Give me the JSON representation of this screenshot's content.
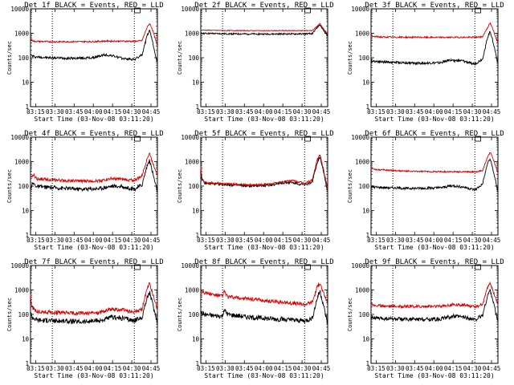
{
  "figure_type": "multi-panel time series, 3 x 3 grid",
  "colors": {
    "events": "#000000",
    "lld": "#dd0000",
    "marker": "#000000"
  },
  "chart_data": [
    {
      "type": "line",
      "title": "Det 1f BLACK = Events, RED = LLD",
      "xlabel": "Start Time (03-Nov-08 03:11:20)",
      "ylabel": "Counts/sec",
      "xlim": [
        "03:11",
        "04:50"
      ],
      "ylim": [
        1,
        10000
      ],
      "yscale": "log",
      "xticks": [
        "03:15",
        "03:30",
        "03:45",
        "04:00",
        "04:15",
        "04:30",
        "04:45"
      ],
      "yticks": [
        "1",
        "10",
        "100",
        "1000",
        "10000"
      ],
      "vlines": [
        "03:28",
        "04:32"
      ],
      "series": [
        {
          "name": "Events",
          "color": "#000000",
          "noise": 0.05,
          "x": [
            "03:11",
            "03:14",
            "03:25",
            "03:45",
            "04:00",
            "04:08",
            "04:14",
            "04:22",
            "04:32",
            "04:38",
            "04:42",
            "04:44",
            "04:46",
            "04:50"
          ],
          "y": [
            130,
            110,
            100,
            95,
            100,
            130,
            125,
            95,
            85,
            130,
            800,
            1300,
            500,
            60
          ]
        },
        {
          "name": "LLD",
          "color": "#dd0000",
          "noise": 0.03,
          "x": [
            "03:11",
            "03:14",
            "03:30",
            "04:00",
            "04:10",
            "04:32",
            "04:38",
            "04:42",
            "04:44",
            "04:46",
            "04:50"
          ],
          "y": [
            550,
            470,
            450,
            460,
            480,
            470,
            500,
            1800,
            2500,
            1500,
            300
          ]
        }
      ]
    },
    {
      "type": "line",
      "title": "Det 2f BLACK = Events, RED = LLD",
      "xlabel": "Start Time (03-Nov-08 03:11:20)",
      "ylabel": "Counts/sec",
      "xlim": [
        "03:11",
        "04:50"
      ],
      "ylim": [
        1,
        10000
      ],
      "yscale": "log",
      "xticks": [
        "03:15",
        "03:30",
        "03:45",
        "04:00",
        "04:15",
        "04:30",
        "04:45"
      ],
      "yticks": [
        "1",
        "10",
        "100",
        "1000",
        "10000"
      ],
      "vlines": [
        "03:28",
        "04:32"
      ],
      "series": [
        {
          "name": "Events",
          "color": "#000000",
          "noise": 0.03,
          "x": [
            "03:11",
            "03:30",
            "04:00",
            "04:30",
            "04:38",
            "04:42",
            "04:44",
            "04:46",
            "04:50"
          ],
          "y": [
            1000,
            950,
            930,
            940,
            960,
            1800,
            2200,
            1500,
            800
          ]
        },
        {
          "name": "LLD",
          "color": "#dd0000",
          "noise": 0.015,
          "x": [
            "03:11",
            "03:30",
            "04:00",
            "04:30",
            "04:38",
            "04:42",
            "04:44",
            "04:46",
            "04:50"
          ],
          "y": [
            1350,
            1300,
            1280,
            1290,
            1300,
            2000,
            2500,
            1700,
            950
          ]
        }
      ]
    },
    {
      "type": "line",
      "title": "Det 3f BLACK = Events, RED = LLD",
      "xlabel": "Start Time (03-Nov-08 03:11:20)",
      "ylabel": "Counts/sec",
      "xlim": [
        "03:11",
        "04:50"
      ],
      "ylim": [
        1,
        10000
      ],
      "yscale": "log",
      "xticks": [
        "03:15",
        "03:30",
        "03:45",
        "04:00",
        "04:15",
        "04:30",
        "04:45"
      ],
      "yticks": [
        "1",
        "10",
        "100",
        "1000",
        "10000"
      ],
      "vlines": [
        "03:28",
        "04:32"
      ],
      "series": [
        {
          "name": "Events",
          "color": "#000000",
          "noise": 0.05,
          "x": [
            "03:11",
            "03:20",
            "03:45",
            "04:05",
            "04:12",
            "04:22",
            "04:32",
            "04:38",
            "04:42",
            "04:44",
            "04:46",
            "04:50"
          ],
          "y": [
            75,
            68,
            60,
            62,
            80,
            75,
            55,
            90,
            700,
            1200,
            500,
            60
          ]
        },
        {
          "name": "LLD",
          "color": "#dd0000",
          "noise": 0.03,
          "x": [
            "03:11",
            "03:20",
            "04:00",
            "04:32",
            "04:38",
            "04:42",
            "04:44",
            "04:46",
            "04:50"
          ],
          "y": [
            750,
            700,
            680,
            690,
            720,
            1800,
            2600,
            1500,
            400
          ]
        }
      ]
    },
    {
      "type": "line",
      "title": "Det 4f BLACK = Events, RED = LLD",
      "xlabel": "Start Time (03-Nov-08 03:11:20)",
      "ylabel": "Counts/sec",
      "xlim": [
        "03:11",
        "04:50"
      ],
      "ylim": [
        1,
        10000
      ],
      "yscale": "log",
      "xticks": [
        "03:15",
        "03:30",
        "03:45",
        "04:00",
        "04:15",
        "04:30",
        "04:45"
      ],
      "yticks": [
        "1",
        "10",
        "100",
        "1000",
        "10000"
      ],
      "vlines": [
        "03:28",
        "04:32"
      ],
      "series": [
        {
          "name": "Events",
          "color": "#000000",
          "noise": 0.08,
          "x": [
            "03:11",
            "03:13",
            "03:16",
            "03:30",
            "03:50",
            "04:05",
            "04:14",
            "04:22",
            "04:32",
            "04:38",
            "04:42",
            "04:44",
            "04:46",
            "04:50"
          ],
          "y": [
            90,
            130,
            95,
            85,
            75,
            80,
            100,
            95,
            75,
            110,
            700,
            1100,
            400,
            60
          ]
        },
        {
          "name": "LLD",
          "color": "#dd0000",
          "noise": 0.06,
          "x": [
            "03:11",
            "03:13",
            "03:16",
            "03:30",
            "03:50",
            "04:05",
            "04:14",
            "04:22",
            "04:32",
            "04:38",
            "04:42",
            "04:44",
            "04:46",
            "04:50"
          ],
          "y": [
            190,
            300,
            200,
            175,
            160,
            165,
            200,
            190,
            170,
            260,
            1400,
            2200,
            1000,
            300
          ]
        }
      ]
    },
    {
      "type": "line",
      "title": "Det 5f BLACK = Events, RED = LLD",
      "xlabel": "Start Time (03-Nov-08 03:11:20)",
      "ylabel": "Counts/sec",
      "xlim": [
        "03:11",
        "04:50"
      ],
      "ylim": [
        1,
        10000
      ],
      "yscale": "log",
      "xticks": [
        "03:15",
        "03:30",
        "03:45",
        "04:00",
        "04:15",
        "04:30",
        "04:45"
      ],
      "yticks": [
        "1",
        "10",
        "100",
        "1000",
        "10000"
      ],
      "vlines": [
        "03:28",
        "04:32"
      ],
      "series": [
        {
          "name": "Events",
          "color": "#000000",
          "noise": 0.05,
          "x": [
            "03:11",
            "03:12",
            "03:14",
            "03:30",
            "03:50",
            "04:05",
            "04:15",
            "04:22",
            "04:32",
            "04:38",
            "04:42",
            "04:44",
            "04:46",
            "04:50"
          ],
          "y": [
            400,
            180,
            130,
            115,
            100,
            110,
            135,
            140,
            110,
            150,
            1000,
            1600,
            600,
            60
          ]
        },
        {
          "name": "LLD",
          "color": "#dd0000",
          "noise": 0.04,
          "x": [
            "03:11",
            "03:12",
            "03:14",
            "03:30",
            "03:50",
            "04:05",
            "04:15",
            "04:22",
            "04:32",
            "04:38",
            "04:42",
            "04:44",
            "04:46",
            "04:50"
          ],
          "y": [
            600,
            200,
            145,
            125,
            110,
            120,
            150,
            170,
            130,
            180,
            1300,
            1900,
            700,
            80
          ]
        }
      ]
    },
    {
      "type": "line",
      "title": "Det 6f BLACK = Events, RED = LLD",
      "xlabel": "Start Time (03-Nov-08 03:11:20)",
      "ylabel": "Counts/sec",
      "xlim": [
        "03:11",
        "04:50"
      ],
      "ylim": [
        1,
        10000
      ],
      "yscale": "log",
      "xticks": [
        "03:15",
        "03:30",
        "03:45",
        "04:00",
        "04:15",
        "04:30",
        "04:45"
      ],
      "yticks": [
        "1",
        "10",
        "100",
        "1000",
        "10000"
      ],
      "vlines": [
        "03:28",
        "04:32"
      ],
      "series": [
        {
          "name": "Events",
          "color": "#000000",
          "noise": 0.05,
          "x": [
            "03:11",
            "03:14",
            "03:40",
            "04:05",
            "04:14",
            "04:24",
            "04:32",
            "04:38",
            "04:42",
            "04:44",
            "04:46",
            "04:50"
          ],
          "y": [
            95,
            90,
            80,
            85,
            105,
            90,
            70,
            120,
            900,
            1300,
            500,
            60
          ]
        },
        {
          "name": "LLD",
          "color": "#dd0000",
          "noise": 0.03,
          "x": [
            "03:11",
            "03:14",
            "03:40",
            "04:05",
            "04:32",
            "04:38",
            "04:42",
            "04:44",
            "04:46",
            "04:50"
          ],
          "y": [
            550,
            480,
            400,
            390,
            380,
            420,
            1600,
            2400,
            1400,
            350
          ]
        }
      ]
    },
    {
      "type": "line",
      "title": "Det 7f BLACK = Events, RED = LLD",
      "xlabel": "Start Time (03-Nov-08 03:11:20)",
      "ylabel": "Counts/sec",
      "xlim": [
        "03:11",
        "04:50"
      ],
      "ylim": [
        1,
        10000
      ],
      "yscale": "log",
      "xticks": [
        "03:15",
        "03:30",
        "03:45",
        "04:00",
        "04:15",
        "04:30",
        "04:45"
      ],
      "yticks": [
        "1",
        "10",
        "100",
        "1000",
        "10000"
      ],
      "vlines": [
        "03:28",
        "04:32"
      ],
      "series": [
        {
          "name": "Events",
          "color": "#000000",
          "noise": 0.1,
          "x": [
            "03:11",
            "03:12",
            "03:16",
            "03:30",
            "03:50",
            "04:05",
            "04:14",
            "04:24",
            "04:32",
            "04:38",
            "04:42",
            "04:44",
            "04:46",
            "04:50"
          ],
          "y": [
            140,
            80,
            60,
            55,
            50,
            55,
            75,
            70,
            55,
            75,
            500,
            800,
            300,
            40
          ]
        },
        {
          "name": "LLD",
          "color": "#dd0000",
          "noise": 0.08,
          "x": [
            "03:11",
            "03:12",
            "03:16",
            "03:30",
            "03:50",
            "04:05",
            "04:14",
            "04:24",
            "04:32",
            "04:38",
            "04:42",
            "04:44",
            "04:46",
            "04:50"
          ],
          "y": [
            650,
            200,
            130,
            120,
            110,
            120,
            165,
            150,
            120,
            170,
            1100,
            1900,
            800,
            150
          ]
        }
      ]
    },
    {
      "type": "line",
      "title": "Det 8f BLACK = Events, RED = LLD",
      "xlabel": "Start Time (03-Nov-08 03:11:20)",
      "ylabel": "Counts/sec",
      "xlim": [
        "03:11",
        "04:50"
      ],
      "ylim": [
        1,
        10000
      ],
      "yscale": "log",
      "xticks": [
        "03:15",
        "03:30",
        "03:45",
        "04:00",
        "04:15",
        "04:30",
        "04:45"
      ],
      "yticks": [
        "1",
        "10",
        "100",
        "1000",
        "10000"
      ],
      "vlines": [
        "03:28",
        "04:32"
      ],
      "series": [
        {
          "name": "Events",
          "color": "#000000",
          "noise": 0.1,
          "x": [
            "03:11",
            "03:14",
            "03:20",
            "03:28",
            "03:29",
            "03:32",
            "03:50",
            "04:10",
            "04:32",
            "04:38",
            "04:42",
            "04:44",
            "04:46",
            "04:50"
          ],
          "y": [
            120,
            100,
            90,
            85,
            160,
            100,
            75,
            65,
            55,
            70,
            500,
            900,
            350,
            40
          ]
        },
        {
          "name": "LLD",
          "color": "#dd0000",
          "noise": 0.08,
          "x": [
            "03:11",
            "03:14",
            "03:20",
            "03:28",
            "03:29",
            "03:32",
            "03:50",
            "04:10",
            "04:32",
            "04:38",
            "04:42",
            "04:44",
            "04:46",
            "04:50"
          ],
          "y": [
            1000,
            800,
            650,
            550,
            900,
            520,
            420,
            330,
            260,
            320,
            1400,
            2000,
            900,
            300
          ]
        }
      ]
    },
    {
      "type": "line",
      "title": "Det 9f BLACK = Events, RED = LLD",
      "xlabel": "Start Time (03-Nov-08 03:11:20)",
      "ylabel": "Counts/sec",
      "xlim": [
        "03:11",
        "04:50"
      ],
      "ylim": [
        1,
        10000
      ],
      "yscale": "log",
      "xticks": [
        "03:15",
        "03:30",
        "03:45",
        "04:00",
        "04:15",
        "04:30",
        "04:45"
      ],
      "yticks": [
        "1",
        "10",
        "100",
        "1000",
        "10000"
      ],
      "vlines": [
        "03:28",
        "04:32"
      ],
      "series": [
        {
          "name": "Events",
          "color": "#000000",
          "noise": 0.08,
          "x": [
            "03:11",
            "03:14",
            "03:40",
            "04:05",
            "04:15",
            "04:25",
            "04:32",
            "04:38",
            "04:42",
            "04:44",
            "04:46",
            "04:50"
          ],
          "y": [
            80,
            70,
            62,
            65,
            85,
            75,
            60,
            90,
            600,
            1000,
            400,
            50
          ]
        },
        {
          "name": "LLD",
          "color": "#dd0000",
          "noise": 0.06,
          "x": [
            "03:11",
            "03:14",
            "03:40",
            "04:05",
            "04:15",
            "04:25",
            "04:32",
            "04:38",
            "04:42",
            "04:44",
            "04:46",
            "04:50"
          ],
          "y": [
            280,
            230,
            210,
            215,
            250,
            240,
            200,
            260,
            1300,
            2100,
            900,
            250
          ]
        }
      ]
    }
  ]
}
